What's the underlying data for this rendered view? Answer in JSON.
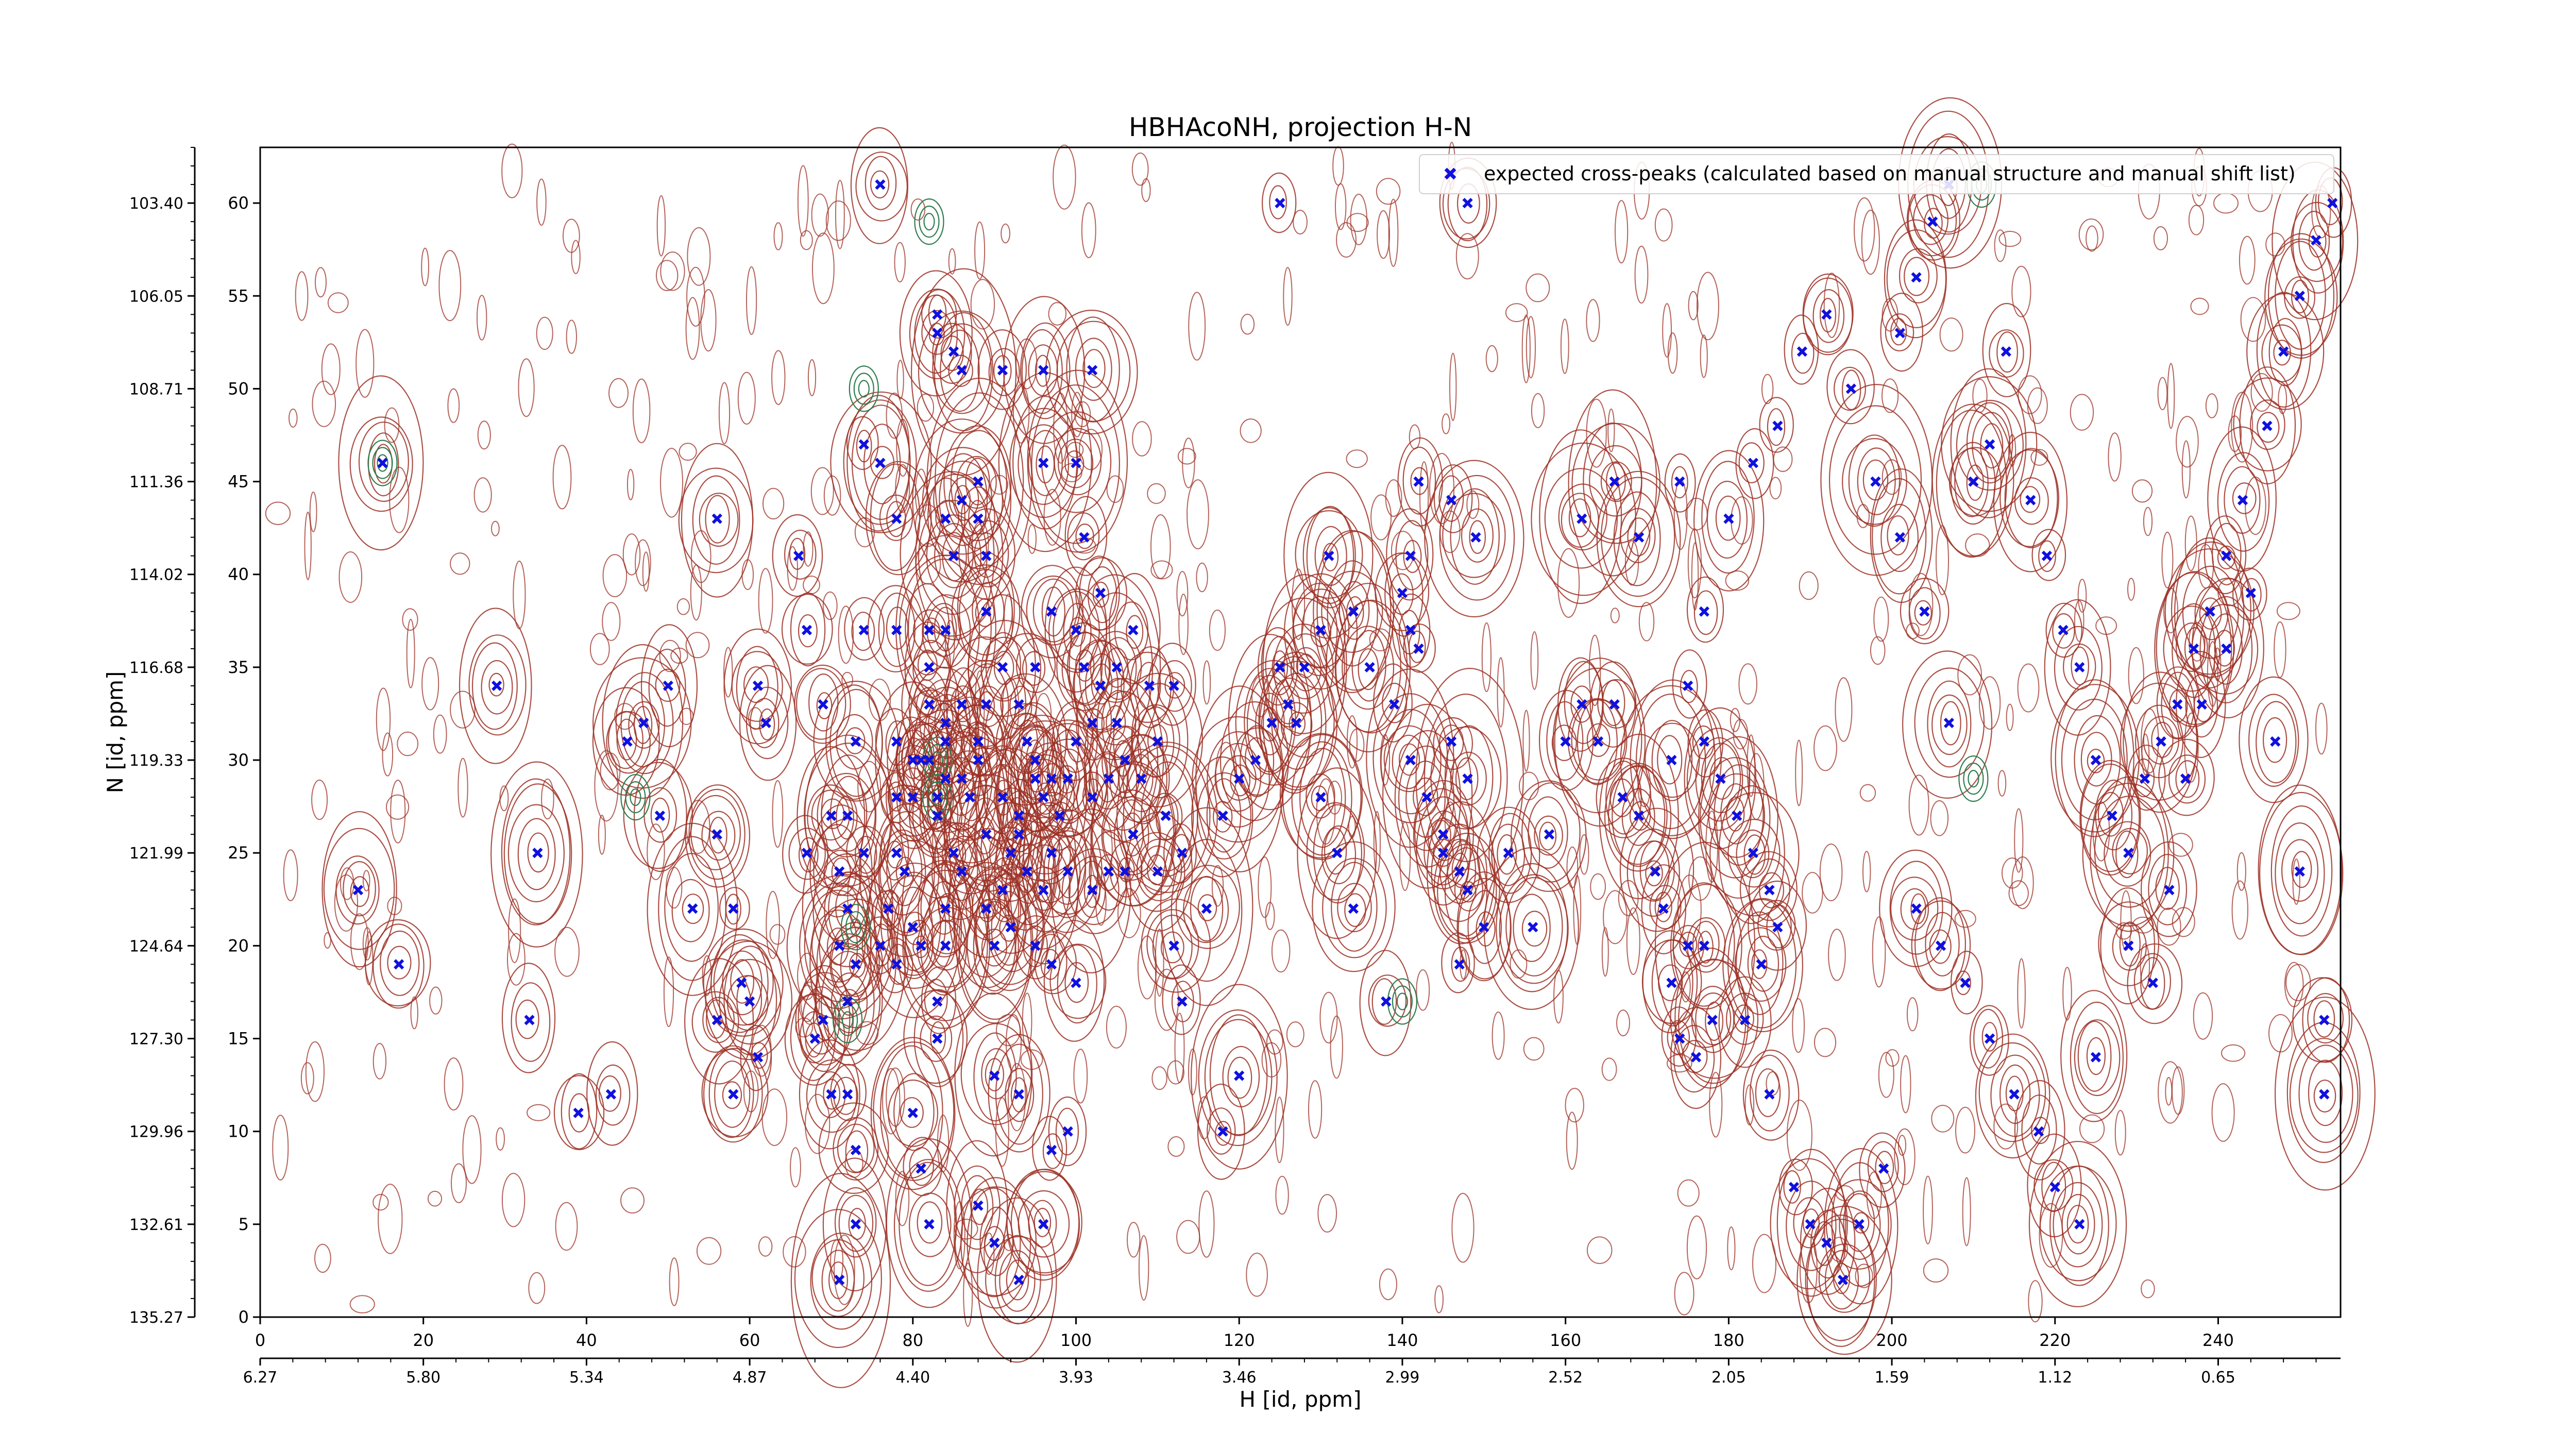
{
  "chart_data": {
    "type": "scatter",
    "title": "HBHAcoNH, projection H-N",
    "xlabel": "H [id, ppm]",
    "ylabel": "N [id, ppm]",
    "xlim": [
      0,
      255
    ],
    "ylim": [
      0,
      63
    ],
    "x_ticks": [
      "0",
      "20",
      "40",
      "60",
      "80",
      "100",
      "120",
      "140",
      "160",
      "180",
      "200",
      "220",
      "240"
    ],
    "x_ticks_ppm": [
      "6.27",
      "5.80",
      "5.34",
      "4.87",
      "4.40",
      "3.93",
      "3.46",
      "2.99",
      "2.52",
      "2.05",
      "1.59",
      "1.12",
      "0.65"
    ],
    "y_ticks": [
      "0",
      "5",
      "10",
      "15",
      "20",
      "25",
      "30",
      "35",
      "40",
      "45",
      "50",
      "55",
      "60"
    ],
    "y_ticks_ppm": [
      "135.27",
      "132.61",
      "129.96",
      "127.30",
      "124.64",
      "121.99",
      "119.33",
      "116.68",
      "114.02",
      "111.36",
      "108.71",
      "106.05",
      "103.40"
    ],
    "legend": {
      "label": "expected cross-peaks (calculated based on manual structure and manual shift list)",
      "placement": "top-right"
    },
    "grid": false,
    "colors": {
      "marker": "#1010e0",
      "contour_positive": "#9c3024",
      "contour_negative": "#2e7d4f"
    },
    "series": [
      {
        "name": "expected cross-peaks (calculated based on manual structure and manual shift list)",
        "points": [
          [
            15,
            46
          ],
          [
            12,
            23
          ],
          [
            17,
            19
          ],
          [
            29,
            34
          ],
          [
            34,
            25
          ],
          [
            33,
            16
          ],
          [
            39,
            11
          ],
          [
            43,
            12
          ],
          [
            45,
            31
          ],
          [
            47,
            32
          ],
          [
            49,
            27
          ],
          [
            50,
            34
          ],
          [
            56,
            43
          ],
          [
            56,
            26
          ],
          [
            58,
            22
          ],
          [
            53,
            22
          ],
          [
            56,
            16
          ],
          [
            59,
            18
          ],
          [
            60,
            17
          ],
          [
            61,
            14
          ],
          [
            58,
            12
          ],
          [
            61,
            34
          ],
          [
            62,
            32
          ],
          [
            67,
            25
          ],
          [
            66,
            41
          ],
          [
            67,
            37
          ],
          [
            69,
            33
          ],
          [
            70,
            27
          ],
          [
            74,
            37
          ],
          [
            73,
            31
          ],
          [
            72,
            27
          ],
          [
            71,
            24
          ],
          [
            74,
            25
          ],
          [
            72,
            22
          ],
          [
            71,
            20
          ],
          [
            76,
            20
          ],
          [
            73,
            19
          ],
          [
            72,
            17
          ],
          [
            68,
            15
          ],
          [
            70,
            12
          ],
          [
            72,
            12
          ],
          [
            69,
            16
          ],
          [
            73,
            9
          ],
          [
            78,
            19
          ],
          [
            77,
            22
          ],
          [
            73,
            5
          ],
          [
            71,
            2
          ],
          [
            78,
            37
          ],
          [
            78,
            31
          ],
          [
            78,
            28
          ],
          [
            78,
            25
          ],
          [
            80,
            21
          ],
          [
            79,
            24
          ],
          [
            80,
            28
          ],
          [
            80,
            30
          ],
          [
            81,
            30
          ],
          [
            82,
            33
          ],
          [
            82,
            30
          ],
          [
            83,
            28
          ],
          [
            83,
            27
          ],
          [
            84,
            29
          ],
          [
            84,
            31
          ],
          [
            86,
            24
          ],
          [
            85,
            25
          ],
          [
            84,
            22
          ],
          [
            81,
            20
          ],
          [
            80,
            11
          ],
          [
            81,
            8
          ],
          [
            82,
            5
          ],
          [
            83,
            15
          ],
          [
            83,
            17
          ],
          [
            84,
            20
          ],
          [
            76,
            61
          ],
          [
            74,
            47
          ],
          [
            76,
            46
          ],
          [
            78,
            43
          ],
          [
            84,
            43
          ],
          [
            86,
            44
          ],
          [
            88,
            45
          ],
          [
            82,
            37
          ],
          [
            84,
            37
          ],
          [
            85,
            41
          ],
          [
            88,
            43
          ],
          [
            89,
            41
          ],
          [
            89,
            38
          ],
          [
            82,
            35
          ],
          [
            84,
            32
          ],
          [
            86,
            33
          ],
          [
            88,
            31
          ],
          [
            89,
            33
          ],
          [
            91,
            35
          ],
          [
            93,
            33
          ],
          [
            95,
            35
          ],
          [
            94,
            31
          ],
          [
            95,
            29
          ],
          [
            96,
            28
          ],
          [
            97,
            29
          ],
          [
            98,
            27
          ],
          [
            99,
            29
          ],
          [
            100,
            31
          ],
          [
            102,
            28
          ],
          [
            104,
            29
          ],
          [
            106,
            30
          ],
          [
            103,
            34
          ],
          [
            105,
            35
          ],
          [
            109,
            34
          ],
          [
            112,
            34
          ],
          [
            110,
            31
          ],
          [
            108,
            29
          ],
          [
            107,
            26
          ],
          [
            111,
            27
          ],
          [
            113,
            25
          ],
          [
            110,
            24
          ],
          [
            106,
            24
          ],
          [
            104,
            24
          ],
          [
            102,
            23
          ],
          [
            99,
            24
          ],
          [
            97,
            25
          ],
          [
            94,
            24
          ],
          [
            92,
            25
          ],
          [
            91,
            23
          ],
          [
            89,
            22
          ],
          [
            90,
            20
          ],
          [
            92,
            21
          ],
          [
            95,
            20
          ],
          [
            97,
            19
          ],
          [
            100,
            18
          ],
          [
            96,
            23
          ],
          [
            93,
            26
          ],
          [
            91,
            28
          ],
          [
            89,
            26
          ],
          [
            87,
            28
          ],
          [
            88,
            30
          ],
          [
            86,
            29
          ],
          [
            93,
            27
          ],
          [
            95,
            30
          ],
          [
            97,
            38
          ],
          [
            96,
            46
          ],
          [
            100,
            46
          ],
          [
            101,
            42
          ],
          [
            100,
            37
          ],
          [
            101,
            35
          ],
          [
            102,
            32
          ],
          [
            105,
            32
          ],
          [
            107,
            37
          ],
          [
            103,
            39
          ],
          [
            91,
            51
          ],
          [
            96,
            51
          ],
          [
            102,
            51
          ],
          [
            83,
            53
          ],
          [
            83,
            54
          ],
          [
            85,
            52
          ],
          [
            86,
            51
          ],
          [
            90,
            13
          ],
          [
            88,
            6
          ],
          [
            90,
            4
          ],
          [
            93,
            12
          ],
          [
            99,
            10
          ],
          [
            97,
            9
          ],
          [
            96,
            5
          ],
          [
            93,
            2
          ],
          [
            118,
            10
          ],
          [
            120,
            13
          ],
          [
            113,
            17
          ],
          [
            112,
            20
          ],
          [
            116,
            22
          ],
          [
            118,
            27
          ],
          [
            120,
            29
          ],
          [
            122,
            30
          ],
          [
            124,
            32
          ],
          [
            126,
            33
          ],
          [
            128,
            35
          ],
          [
            130,
            37
          ],
          [
            134,
            38
          ],
          [
            136,
            35
          ],
          [
            139,
            33
          ],
          [
            141,
            30
          ],
          [
            143,
            28
          ],
          [
            145,
            26
          ],
          [
            147,
            24
          ],
          [
            148,
            23
          ],
          [
            150,
            21
          ],
          [
            147,
            19
          ],
          [
            138,
            17
          ],
          [
            134,
            22
          ],
          [
            132,
            25
          ],
          [
            130,
            28
          ],
          [
            127,
            32
          ],
          [
            125,
            35
          ],
          [
            125,
            60
          ],
          [
            131,
            41
          ],
          [
            140,
            39
          ],
          [
            141,
            37
          ],
          [
            142,
            36
          ],
          [
            141,
            41
          ],
          [
            146,
            44
          ],
          [
            149,
            42
          ],
          [
            146,
            31
          ],
          [
            148,
            29
          ],
          [
            145,
            25
          ],
          [
            142,
            45
          ],
          [
            148,
            60
          ],
          [
            153,
            25
          ],
          [
            156,
            21
          ],
          [
            158,
            26
          ],
          [
            160,
            31
          ],
          [
            162,
            33
          ],
          [
            164,
            31
          ],
          [
            166,
            33
          ],
          [
            167,
            28
          ],
          [
            169,
            27
          ],
          [
            171,
            24
          ],
          [
            172,
            22
          ],
          [
            173,
            18
          ],
          [
            174,
            15
          ],
          [
            176,
            14
          ],
          [
            178,
            16
          ],
          [
            177,
            20
          ],
          [
            175,
            20
          ],
          [
            173,
            30
          ],
          [
            175,
            34
          ],
          [
            177,
            31
          ],
          [
            179,
            29
          ],
          [
            181,
            27
          ],
          [
            183,
            25
          ],
          [
            185,
            23
          ],
          [
            186,
            21
          ],
          [
            184,
            19
          ],
          [
            182,
            16
          ],
          [
            185,
            12
          ],
          [
            188,
            7
          ],
          [
            190,
            5
          ],
          [
            192,
            4
          ],
          [
            194,
            2
          ],
          [
            196,
            5
          ],
          [
            199,
            8
          ],
          [
            203,
            22
          ],
          [
            206,
            20
          ],
          [
            209,
            18
          ],
          [
            212,
            15
          ],
          [
            215,
            12
          ],
          [
            218,
            10
          ],
          [
            220,
            7
          ],
          [
            223,
            5
          ],
          [
            225,
            14
          ],
          [
            229,
            20
          ],
          [
            232,
            18
          ],
          [
            234,
            23
          ],
          [
            236,
            29
          ],
          [
            238,
            33
          ],
          [
            241,
            36
          ],
          [
            244,
            39
          ],
          [
            247,
            31
          ],
          [
            250,
            24
          ],
          [
            253,
            16
          ],
          [
            253,
            12
          ],
          [
            162,
            43
          ],
          [
            166,
            45
          ],
          [
            169,
            42
          ],
          [
            174,
            45
          ],
          [
            177,
            38
          ],
          [
            180,
            43
          ],
          [
            183,
            46
          ],
          [
            186,
            48
          ],
          [
            189,
            52
          ],
          [
            192,
            54
          ],
          [
            195,
            50
          ],
          [
            198,
            45
          ],
          [
            201,
            42
          ],
          [
            204,
            38
          ],
          [
            207,
            32
          ],
          [
            210,
            45
          ],
          [
            212,
            47
          ],
          [
            214,
            52
          ],
          [
            217,
            44
          ],
          [
            219,
            41
          ],
          [
            221,
            37
          ],
          [
            223,
            35
          ],
          [
            225,
            30
          ],
          [
            227,
            27
          ],
          [
            229,
            25
          ],
          [
            231,
            29
          ],
          [
            233,
            31
          ],
          [
            235,
            33
          ],
          [
            237,
            36
          ],
          [
            239,
            38
          ],
          [
            241,
            41
          ],
          [
            243,
            44
          ],
          [
            246,
            48
          ],
          [
            248,
            52
          ],
          [
            250,
            55
          ],
          [
            252,
            58
          ],
          [
            254,
            60
          ],
          [
            201,
            53
          ],
          [
            203,
            56
          ],
          [
            205,
            59
          ],
          [
            207,
            61
          ]
        ]
      }
    ]
  }
}
